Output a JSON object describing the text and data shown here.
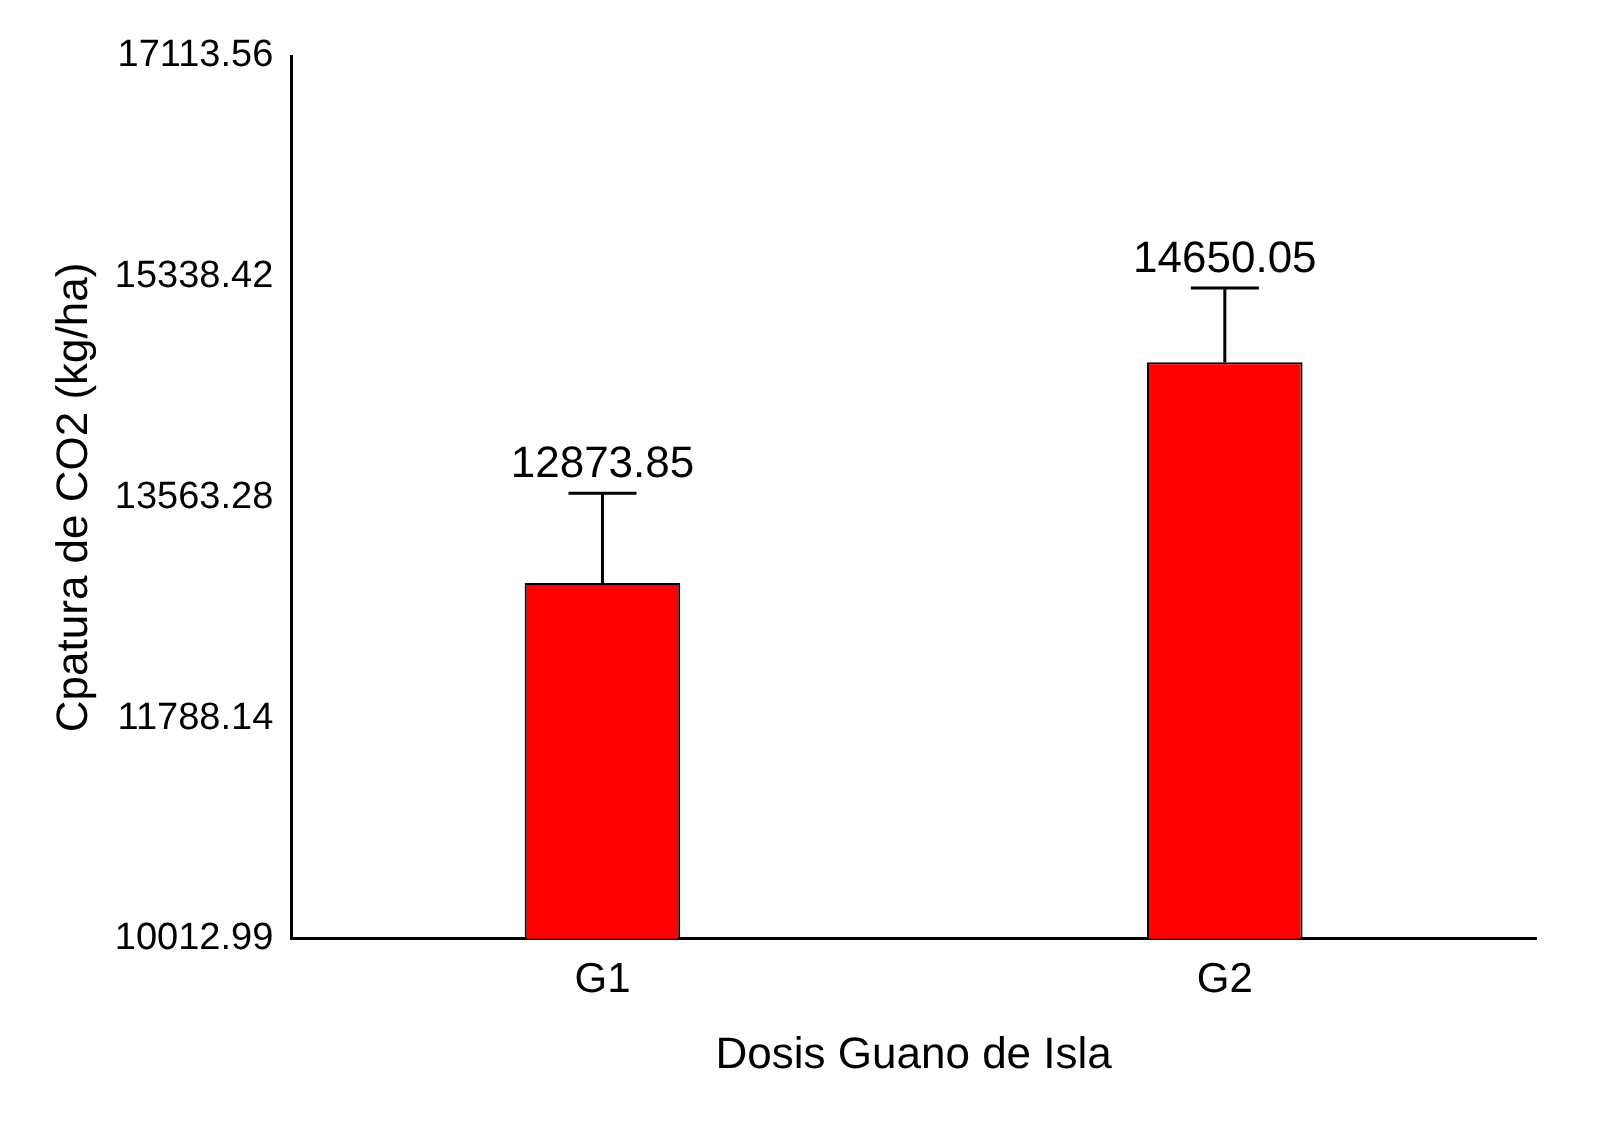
{
  "chart_data": {
    "type": "bar",
    "xlabel": "Dosis Guano de Isla",
    "ylabel": "Cpatura de CO2 (kg/ha)",
    "categories": [
      "G1",
      "G2"
    ],
    "values": [
      12873.85,
      14650.05
    ],
    "color": "#ff0000",
    "errors": [
      [
        12873.85,
        13597
      ],
      [
        14650.05,
        15247
      ]
    ],
    "data_labels": true,
    "ylim": [
      10012.99,
      17113.56
    ],
    "yticks": [
      10012.99,
      11788.14,
      13563.28,
      15338.42,
      17113.56
    ],
    "grid": false,
    "legend": false
  }
}
